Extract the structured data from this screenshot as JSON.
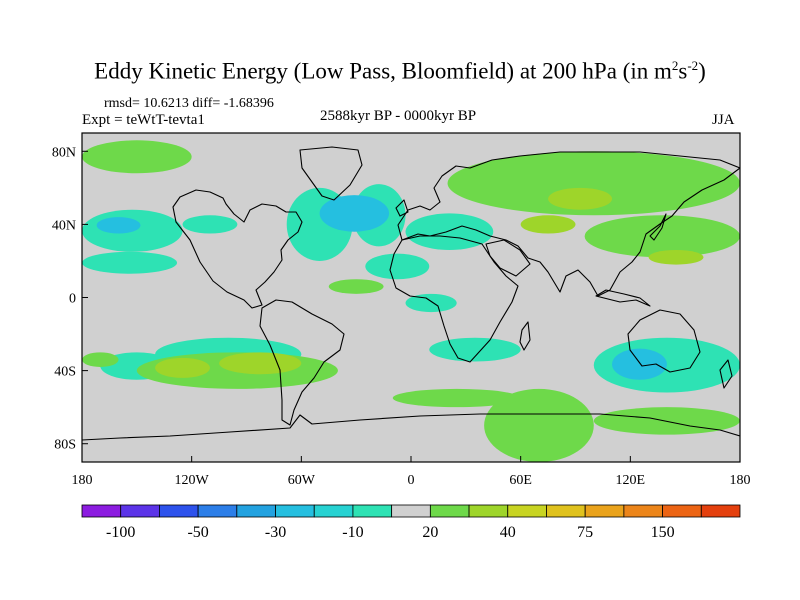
{
  "figure": {
    "title_main": "Eddy Kinetic Energy (Low Pass, Bloomfield) at 200 hPa (in m",
    "title_sup1": "2",
    "title_mid": "s",
    "title_sup2": "-2",
    "title_end": ")",
    "stats": "rmsd= 10.6213 diff= -1.68396",
    "expt": "Expt = teWtT-tevta1",
    "period": "2588kyr BP - 0000kyr BP",
    "season": "JJA"
  },
  "chart_data": {
    "type": "heatmap",
    "projection": "cylindrical-equidistant",
    "xlim": [
      -180,
      180
    ],
    "ylim": [
      -90,
      90
    ],
    "x_ticks": [
      {
        "value": -180,
        "label": "180"
      },
      {
        "value": -120,
        "label": "120W"
      },
      {
        "value": -60,
        "label": "60W"
      },
      {
        "value": 0,
        "label": "0"
      },
      {
        "value": 60,
        "label": "60E"
      },
      {
        "value": 120,
        "label": "120E"
      },
      {
        "value": 180,
        "label": "180"
      }
    ],
    "y_ticks": [
      {
        "value": 80,
        "label": "80N"
      },
      {
        "value": 40,
        "label": "40N"
      },
      {
        "value": 0,
        "label": "0"
      },
      {
        "value": -40,
        "label": "40S"
      },
      {
        "value": -80,
        "label": "80S"
      }
    ],
    "colorbar": {
      "colors": [
        "#8c1ce0",
        "#5c34e8",
        "#2d52ec",
        "#2c7ee8",
        "#23a2e0",
        "#25bfe0",
        "#27d2d2",
        "#2ee2b4",
        "#d0d0d0",
        "#6ed94a",
        "#9ed52a",
        "#c8d422",
        "#e0c21e",
        "#eaa31c",
        "#ec851a",
        "#ec6414",
        "#e4400e"
      ],
      "labels": [
        {
          "after_box": 1,
          "label": "-100"
        },
        {
          "after_box": 3,
          "label": "-50"
        },
        {
          "after_box": 5,
          "label": "-30"
        },
        {
          "after_box": 7,
          "label": "-10"
        },
        {
          "after_box": 9,
          "label": "20"
        },
        {
          "after_box": 11,
          "label": "40"
        },
        {
          "after_box": 13,
          "label": "75"
        },
        {
          "after_box": 15,
          "label": "150"
        }
      ]
    },
    "regions": [
      {
        "sign": "neg",
        "level": "light",
        "lon": [
          -180,
          -125
        ],
        "lat": [
          25,
          48
        ]
      },
      {
        "sign": "neg",
        "level": "light",
        "lon": [
          -125,
          -95
        ],
        "lat": [
          35,
          45
        ]
      },
      {
        "sign": "neg",
        "level": "mid",
        "lon": [
          -172,
          -148
        ],
        "lat": [
          35,
          44
        ]
      },
      {
        "sign": "neg",
        "level": "light",
        "lon": [
          -180,
          -128
        ],
        "lat": [
          13,
          25
        ]
      },
      {
        "sign": "neg",
        "level": "light",
        "lon": [
          -68,
          -32
        ],
        "lat": [
          20,
          60
        ]
      },
      {
        "sign": "neg",
        "level": "light",
        "lon": [
          -32,
          -3
        ],
        "lat": [
          28,
          62
        ]
      },
      {
        "sign": "neg",
        "level": "mid",
        "lon": [
          -50,
          -12
        ],
        "lat": [
          36,
          56
        ]
      },
      {
        "sign": "neg",
        "level": "light",
        "lon": [
          -3,
          45
        ],
        "lat": [
          26,
          46
        ]
      },
      {
        "sign": "neg",
        "level": "light",
        "lon": [
          -25,
          10
        ],
        "lat": [
          10,
          24
        ]
      },
      {
        "sign": "neg",
        "level": "light",
        "lon": [
          -140,
          -60
        ],
        "lat": [
          -22,
          -40
        ]
      },
      {
        "sign": "neg",
        "level": "light",
        "lon": [
          -170,
          -130
        ],
        "lat": [
          -30,
          -45
        ]
      },
      {
        "sign": "neg",
        "level": "light",
        "lon": [
          10,
          60
        ],
        "lat": [
          -22,
          -35
        ]
      },
      {
        "sign": "neg",
        "level": "light",
        "lon": [
          100,
          180
        ],
        "lat": [
          -22,
          -52
        ]
      },
      {
        "sign": "neg",
        "level": "mid",
        "lon": [
          110,
          140
        ],
        "lat": [
          -28,
          -45
        ]
      },
      {
        "sign": "neg",
        "level": "light",
        "lon": [
          -3,
          25
        ],
        "lat": [
          2,
          -8
        ]
      },
      {
        "sign": "pos",
        "level": "light",
        "lon": [
          20,
          180
        ],
        "lat": [
          45,
          80
        ]
      },
      {
        "sign": "pos",
        "level": "light",
        "lon": [
          95,
          180
        ],
        "lat": [
          22,
          45
        ]
      },
      {
        "sign": "pos",
        "level": "mid",
        "lon": [
          75,
          110
        ],
        "lat": [
          48,
          60
        ]
      },
      {
        "sign": "pos",
        "level": "mid",
        "lon": [
          60,
          90
        ],
        "lat": [
          35,
          45
        ]
      },
      {
        "sign": "pos",
        "level": "mid",
        "lon": [
          130,
          160
        ],
        "lat": [
          18,
          26
        ]
      },
      {
        "sign": "pos",
        "level": "light",
        "lon": [
          -180,
          -120
        ],
        "lat": [
          68,
          86
        ]
      },
      {
        "sign": "pos",
        "level": "light",
        "lon": [
          -150,
          -40
        ],
        "lat": [
          -30,
          -50
        ]
      },
      {
        "sign": "pos",
        "level": "mid",
        "lon": [
          -140,
          -110
        ],
        "lat": [
          -33,
          -44
        ]
      },
      {
        "sign": "pos",
        "level": "mid",
        "lon": [
          -105,
          -60
        ],
        "lat": [
          -30,
          -42
        ]
      },
      {
        "sign": "pos",
        "level": "light",
        "lon": [
          40,
          100
        ],
        "lat": [
          -50,
          -90
        ]
      },
      {
        "sign": "pos",
        "level": "light",
        "lon": [
          -10,
          60
        ],
        "lat": [
          -50,
          -60
        ]
      },
      {
        "sign": "pos",
        "level": "light",
        "lon": [
          100,
          180
        ],
        "lat": [
          -60,
          -75
        ]
      },
      {
        "sign": "pos",
        "level": "light",
        "lon": [
          -45,
          -15
        ],
        "lat": [
          2,
          10
        ]
      },
      {
        "sign": "pos",
        "level": "light",
        "lon": [
          -180,
          -160
        ],
        "lat": [
          -30,
          -38
        ]
      }
    ]
  }
}
